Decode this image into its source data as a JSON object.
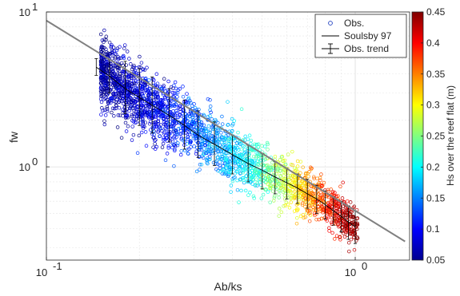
{
  "chart_data": {
    "type": "scatter",
    "xscale": "log",
    "yscale": "log",
    "xlim": [
      0.1,
      1.5
    ],
    "ylim": [
      0.25,
      10
    ],
    "grid": true,
    "xlabel": "Ab/ks",
    "ylabel": "fw",
    "x_ticks": [
      {
        "value": 0.1,
        "base": "10",
        "exp": "-1"
      },
      {
        "value": 1,
        "base": "10",
        "exp": "0"
      }
    ],
    "y_ticks": [
      {
        "value": 1,
        "base": "10",
        "exp": "0"
      },
      {
        "value": 10,
        "base": "10",
        "exp": "1"
      }
    ],
    "legend": {
      "placement": "top-right",
      "entries": [
        "Obs.",
        "Soulsby 97",
        "Obs. trend"
      ]
    },
    "colorbar": {
      "label": "Hs over the reef flat (m)",
      "range": [
        0.05,
        0.45
      ],
      "ticks": [
        "0.05",
        "0.1",
        "0.15",
        "0.2",
        "0.25",
        "0.3",
        "0.35",
        "0.4",
        "0.45"
      ],
      "colormap": "jet"
    },
    "colors": {
      "soulsby_line": "#808080",
      "trend": "#000000"
    },
    "series": [
      {
        "name": "Soulsby 97",
        "type": "line",
        "points": [
          [
            0.1,
            8.8
          ],
          [
            1.45,
            0.33
          ]
        ]
      },
      {
        "name": "Obs. trend",
        "type": "errorbar",
        "points": [
          [
            0.145,
            4.4,
            3.9,
            5.0
          ],
          [
            0.16,
            3.85,
            3.0,
            4.9
          ],
          [
            0.18,
            3.2,
            2.2,
            4.8
          ],
          [
            0.2,
            2.8,
            1.85,
            4.3
          ],
          [
            0.22,
            2.5,
            1.65,
            3.8
          ],
          [
            0.25,
            2.15,
            1.45,
            3.2
          ],
          [
            0.28,
            1.85,
            1.3,
            2.7
          ],
          [
            0.31,
            1.6,
            1.15,
            2.3
          ],
          [
            0.35,
            1.4,
            1.02,
            1.95
          ],
          [
            0.4,
            1.2,
            0.9,
            1.6
          ],
          [
            0.45,
            1.05,
            0.8,
            1.38
          ],
          [
            0.5,
            0.95,
            0.72,
            1.22
          ],
          [
            0.55,
            0.86,
            0.67,
            1.08
          ],
          [
            0.6,
            0.79,
            0.62,
            0.98
          ],
          [
            0.65,
            0.73,
            0.58,
            0.9
          ],
          [
            0.7,
            0.67,
            0.54,
            0.83
          ],
          [
            0.75,
            0.62,
            0.5,
            0.76
          ],
          [
            0.8,
            0.57,
            0.46,
            0.7
          ],
          [
            0.85,
            0.52,
            0.42,
            0.64
          ],
          [
            0.9,
            0.48,
            0.38,
            0.6
          ],
          [
            0.95,
            0.44,
            0.34,
            0.56
          ],
          [
            1.0,
            0.41,
            0.32,
            0.52
          ]
        ]
      },
      {
        "name": "Obs.",
        "type": "scatter",
        "description_points": "trend",
        "trend": [
          [
            0.15,
            4.2,
            0.06
          ],
          [
            0.2,
            2.7,
            0.08
          ],
          [
            0.3,
            1.75,
            0.13
          ],
          [
            0.45,
            1.05,
            0.2
          ],
          [
            0.6,
            0.8,
            0.28
          ],
          [
            0.75,
            0.62,
            0.36
          ],
          [
            0.9,
            0.48,
            0.42
          ],
          [
            1.0,
            0.41,
            0.45
          ]
        ]
      }
    ]
  }
}
